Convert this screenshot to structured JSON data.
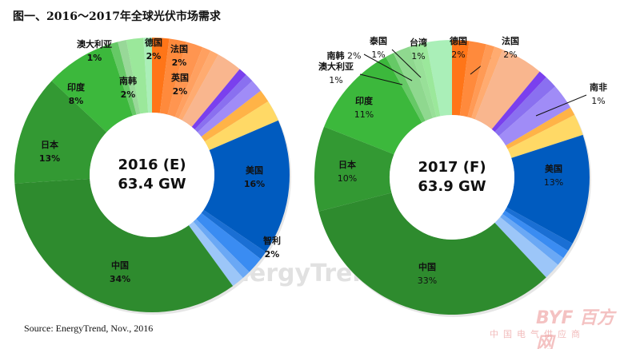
{
  "title": "图一、2016～2017年全球光伏市场需求",
  "source": "Source: EnergyTrend, Nov., 2016",
  "watermark": "EnergyTrend",
  "logo": {
    "text": "BYF 百方网",
    "subtitle": "中国电气供应商"
  },
  "chart_data": [
    {
      "type": "pie",
      "donut": true,
      "center_label": [
        "2016 (E)",
        "63.4 GW"
      ],
      "slices": [
        {
          "label": "德国",
          "value": 2,
          "color": "#ff7518"
        },
        {
          "label": "法国",
          "value": 2,
          "color": "#ff8a3c"
        },
        {
          "label": "英国",
          "value": 2,
          "color": "#ff9550"
        },
        {
          "label": "",
          "value": 1,
          "color": "#ffa060"
        },
        {
          "label": "",
          "value": 1,
          "color": "#ffab70"
        },
        {
          "label": "",
          "value": 3,
          "color": "#f9b68e"
        },
        {
          "label": "",
          "value": 1,
          "color": "#7a40ee"
        },
        {
          "label": "",
          "value": 1,
          "color": "#8a70f0"
        },
        {
          "label": "",
          "value": 1.5,
          "color": "#a08cf7"
        },
        {
          "label": "",
          "value": 1.5,
          "color": "#ffb347"
        },
        {
          "label": "",
          "value": 2.5,
          "color": "#ffd966"
        },
        {
          "label": "美国",
          "value": 16,
          "color": "#005bbf"
        },
        {
          "label": "",
          "value": 1,
          "color": "#1a6fd4"
        },
        {
          "label": "智利",
          "value": 2,
          "color": "#3a8cf2"
        },
        {
          "label": "",
          "value": 1,
          "color": "#6aa8f5"
        },
        {
          "label": "",
          "value": 1.5,
          "color": "#9cc6f8"
        },
        {
          "label": "中国",
          "value": 34,
          "color": "#2e8b2e"
        },
        {
          "label": "日本",
          "value": 13,
          "color": "#339933"
        },
        {
          "label": "印度",
          "value": 8,
          "color": "#3cb83c"
        },
        {
          "label": "澳大利亚",
          "value": 1,
          "color": "#66c966"
        },
        {
          "label": "",
          "value": 1,
          "color": "#98d898"
        },
        {
          "label": "南韩",
          "value": 2,
          "color": "#9be89b"
        },
        {
          "label": "",
          "value": 1,
          "color": "#aaefb8"
        }
      ]
    },
    {
      "type": "pie",
      "donut": true,
      "center_label": [
        "2017 (F)",
        "63.9 GW"
      ],
      "slices": [
        {
          "label": "德国",
          "value": 2,
          "color": "#ff7518"
        },
        {
          "label": "法国",
          "value": 2,
          "color": "#ff8a3c"
        },
        {
          "label": "",
          "value": 1,
          "color": "#ff9a55"
        },
        {
          "label": "",
          "value": 1,
          "color": "#ffab70"
        },
        {
          "label": "",
          "value": 5,
          "color": "#f9b68e"
        },
        {
          "label": "",
          "value": 1,
          "color": "#7a40ee"
        },
        {
          "label": "",
          "value": 1.5,
          "color": "#8a70f0"
        },
        {
          "label": "",
          "value": 3,
          "color": "#a08cf7"
        },
        {
          "label": "南非",
          "value": 1,
          "color": "#ffb347"
        },
        {
          "label": "",
          "value": 2.5,
          "color": "#ffd966"
        },
        {
          "label": "美国",
          "value": 13,
          "color": "#005bbf"
        },
        {
          "label": "",
          "value": 1,
          "color": "#1a6fd4"
        },
        {
          "label": "",
          "value": 1,
          "color": "#3a8cf2"
        },
        {
          "label": "",
          "value": 1,
          "color": "#6aa8f5"
        },
        {
          "label": "",
          "value": 2,
          "color": "#9cc6f8"
        },
        {
          "label": "中国",
          "value": 33,
          "color": "#2e8b2e"
        },
        {
          "label": "日本",
          "value": 10,
          "color": "#339933"
        },
        {
          "label": "印度",
          "value": 11,
          "color": "#3cb83c"
        },
        {
          "label": "澳大利亚",
          "value": 1,
          "color": "#66c966"
        },
        {
          "label": "南韩",
          "value": 2,
          "color": "#8fd88f"
        },
        {
          "label": "泰国",
          "value": 1,
          "color": "#98e098"
        },
        {
          "label": "台湾",
          "value": 1,
          "color": "#9be89b"
        },
        {
          "label": "",
          "value": 3,
          "color": "#aaefb8"
        }
      ]
    }
  ]
}
